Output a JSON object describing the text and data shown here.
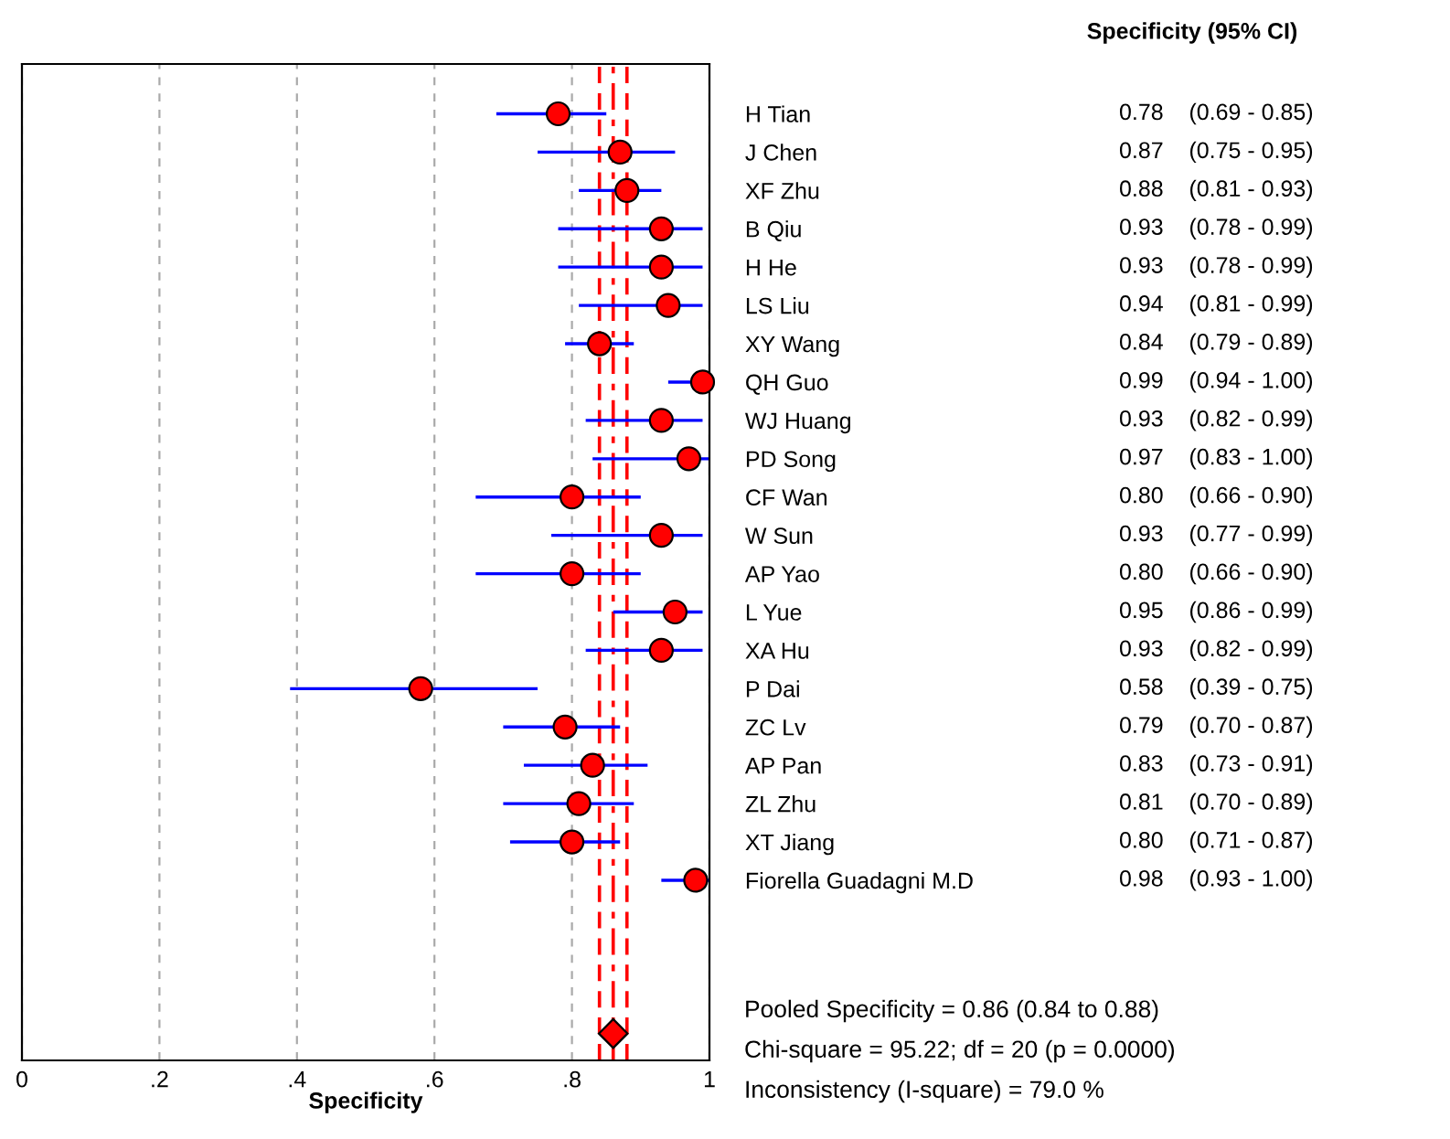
{
  "chart_data": {
    "type": "scatter",
    "orientation": "horizontal",
    "xlabel": "Specificity",
    "categories": [
      "H Tian",
      "J Chen",
      "XF Zhu",
      "B Qiu",
      "H He",
      "LS Liu",
      "XY Wang",
      "QH Guo",
      "WJ Huang",
      "PD Song",
      "CF Wan",
      "W Sun",
      "AP Yao",
      "L Yue",
      "XA Hu",
      "P Dai",
      "ZC Lv",
      "AP Pan",
      "ZL Zhu",
      "XT Jiang",
      "Fiorella Guadagni M.D",
      null,
      null,
      null,
      null
    ],
    "series": [
      {
        "color": "#ff0000",
        "marker": "circle",
        "values": [
          0.78,
          0.87,
          0.88,
          0.93,
          0.93,
          0.94,
          0.84,
          0.99,
          0.93,
          0.97,
          0.8,
          0.93,
          0.8,
          0.95,
          0.93,
          0.58,
          0.79,
          0.83,
          0.81,
          0.8,
          0.98,
          null,
          null,
          null,
          null
        ],
        "errors": [
          [
            0.69,
            0.85
          ],
          [
            0.75,
            0.95
          ],
          [
            0.81,
            0.93
          ],
          [
            0.78,
            0.99
          ],
          [
            0.78,
            0.99
          ],
          [
            0.81,
            0.99
          ],
          [
            0.79,
            0.89
          ],
          [
            0.94,
            1.0
          ],
          [
            0.82,
            0.99
          ],
          [
            0.83,
            1.0
          ],
          [
            0.66,
            0.9
          ],
          [
            0.77,
            0.99
          ],
          [
            0.66,
            0.9
          ],
          [
            0.86,
            0.99
          ],
          [
            0.82,
            0.99
          ],
          [
            0.39,
            0.75
          ],
          [
            0.7,
            0.87
          ],
          [
            0.73,
            0.91
          ],
          [
            0.7,
            0.89
          ],
          [
            0.71,
            0.87
          ],
          [
            0.93,
            1.0
          ],
          null,
          null,
          null,
          null
        ],
        "value_labels": [
          "0.78    (0.69 - 0.85)",
          "0.87    (0.75 - 0.95)",
          "0.88    (0.81 - 0.93)",
          "0.93    (0.78 - 0.99)",
          "0.93    (0.78 - 0.99)",
          "0.94    (0.81 - 0.99)",
          "0.84    (0.79 - 0.89)",
          "0.99    (0.94 - 1.00)",
          "0.93    (0.82 - 0.99)",
          "0.97    (0.83 - 1.00)",
          "0.80    (0.66 - 0.90)",
          "0.93    (0.77 - 0.99)",
          "0.80    (0.66 - 0.90)",
          "0.95    (0.86 - 0.99)",
          "0.93    (0.82 - 0.99)",
          "0.58    (0.39 - 0.75)",
          "0.79    (0.70 - 0.87)",
          "0.83    (0.73 - 0.91)",
          "0.81    (0.70 - 0.89)",
          "0.80    (0.71 - 0.87)",
          "0.98    (0.93 - 1.00)",
          null,
          null,
          null,
          null
        ]
      },
      {
        "color": "#ff0000",
        "marker": "diamond",
        "values": [
          null,
          null,
          null,
          null,
          null,
          null,
          null,
          null,
          null,
          null,
          null,
          null,
          null,
          null,
          null,
          null,
          null,
          null,
          null,
          null,
          null,
          null,
          null,
          null,
          0.86
        ]
      }
    ],
    "xlim": [
      0,
      1
    ],
    "xticks": [
      0,
      {
        "value": 0.2,
        "label": ".2"
      },
      {
        "value": 0.4,
        "label": ".4"
      },
      {
        "value": 0.6,
        "label": ".6"
      },
      {
        "value": 0.8,
        "label": ".8"
      },
      1
    ],
    "grid": "x",
    "ref_lines": [
      {
        "axis": "x",
        "value": 0.86,
        "color": "#ff0000",
        "line_style": "dashdot"
      },
      {
        "axis": "x",
        "value": 0.84,
        "color": "#ff0000",
        "line_style": "dashed"
      },
      {
        "axis": "x",
        "value": 0.88,
        "color": "#ff0000",
        "line_style": "dashed"
      }
    ],
    "annotations": [
      "Specificity (95% CI)",
      "Pooled Specificity = 0.86 (0.84 to 0.88)",
      "Chi-square = 95.22; df = 20 (p = 0.0000)",
      "Inconsistency (I-square) = 79.0 %"
    ]
  }
}
